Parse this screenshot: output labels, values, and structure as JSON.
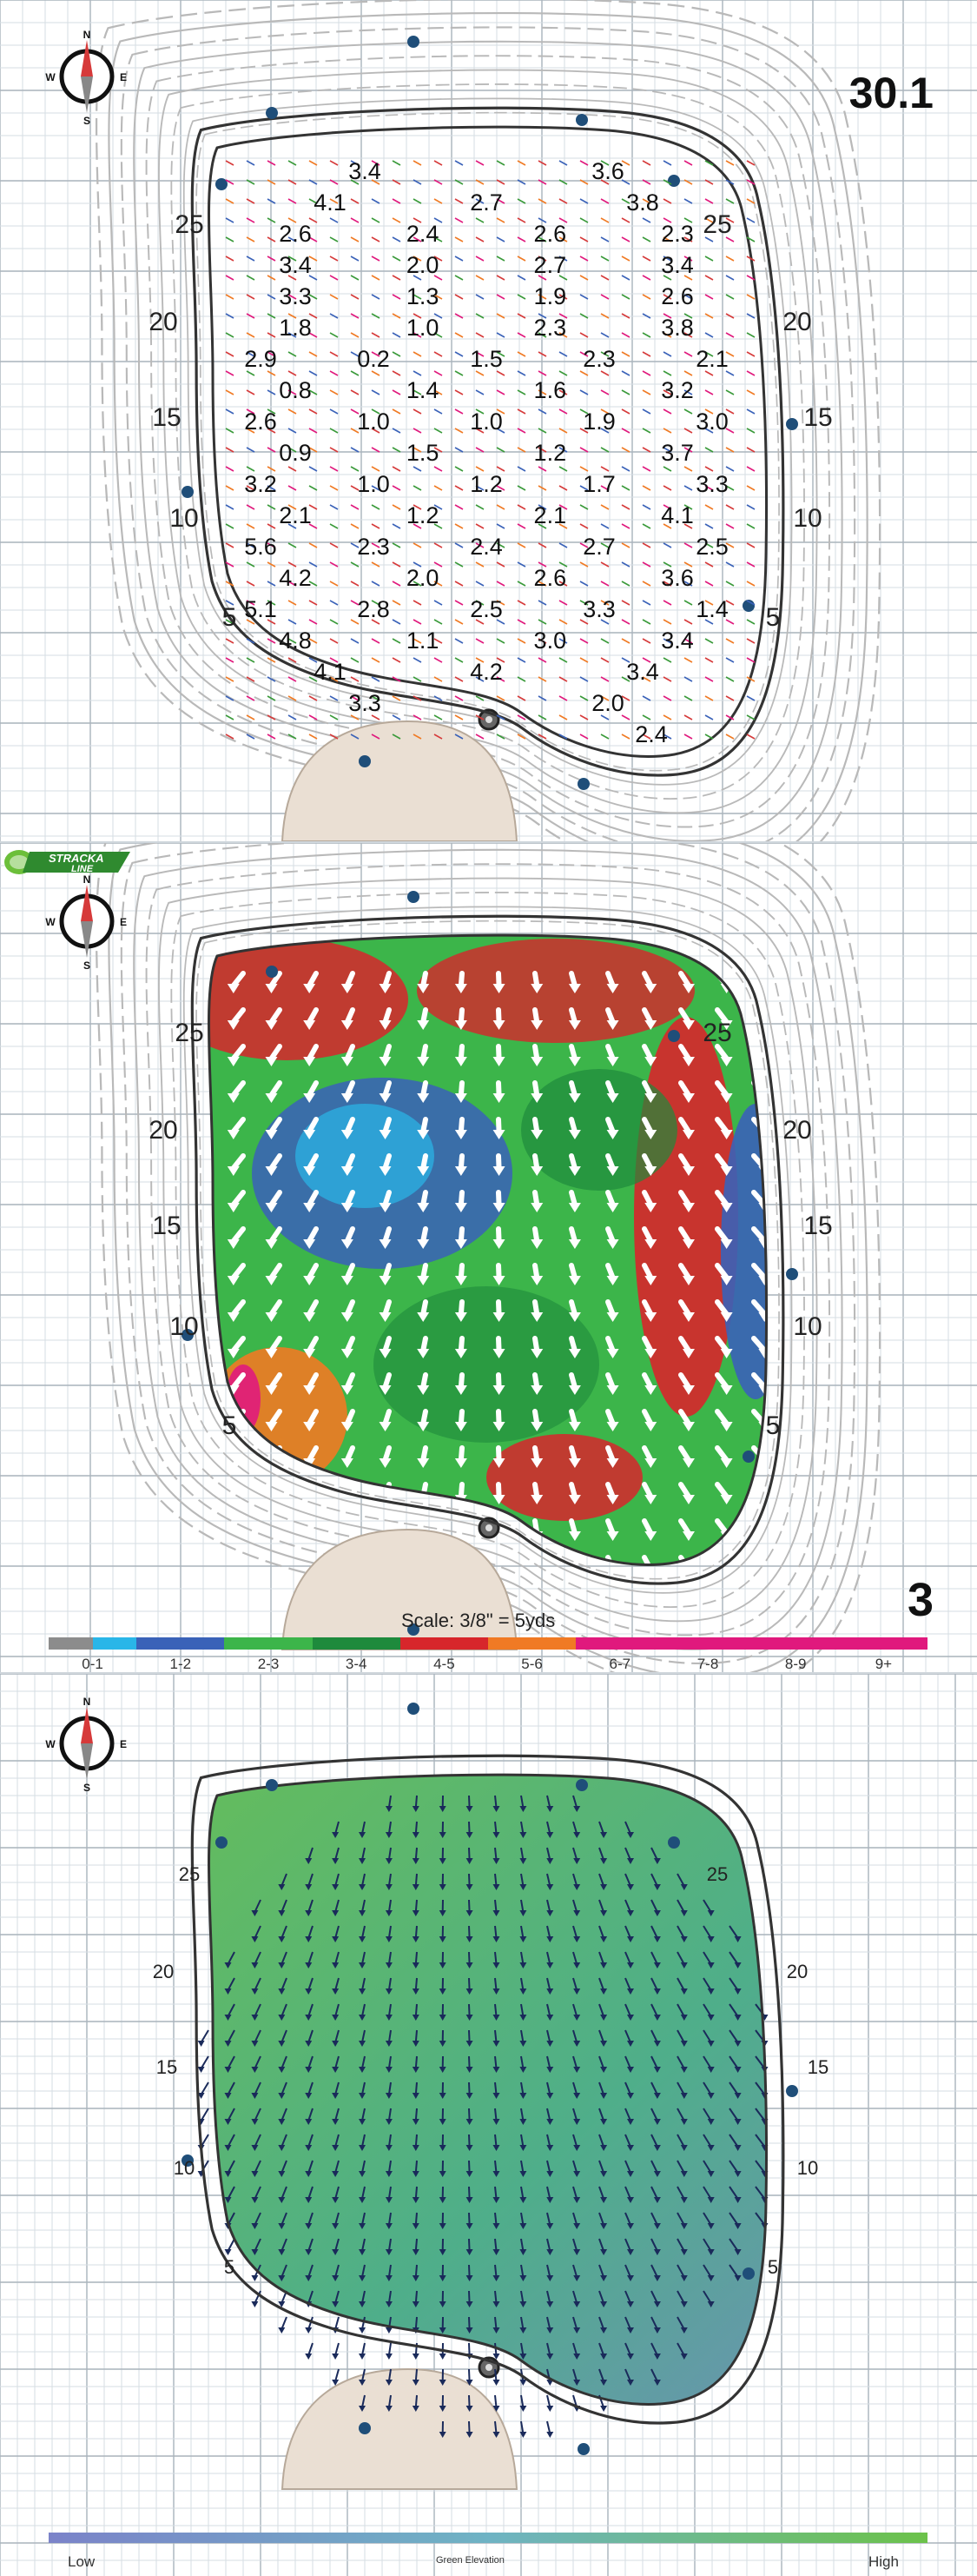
{
  "panel1": {
    "hole_number": "30.1",
    "compass": {
      "n": "N",
      "s": "S",
      "e": "E",
      "w": "W"
    },
    "yard_marks": [
      {
        "v": "25",
        "side": "left"
      },
      {
        "v": "20",
        "side": "left"
      },
      {
        "v": "15",
        "side": "left"
      },
      {
        "v": "10",
        "side": "left"
      },
      {
        "v": "5",
        "side": "left"
      },
      {
        "v": "25",
        "side": "right"
      },
      {
        "v": "20",
        "side": "right"
      },
      {
        "v": "15",
        "side": "right"
      },
      {
        "v": "10",
        "side": "right"
      },
      {
        "v": "5",
        "side": "right"
      }
    ],
    "slope_rows": [
      [
        "3.4",
        "3.6"
      ],
      [
        "4.1",
        "2.7",
        "3.8"
      ],
      [
        "2.6",
        "2.4",
        "2.6",
        "2.3"
      ],
      [
        "3.4",
        "2.0",
        "2.7",
        "3.4"
      ],
      [
        "3.3",
        "1.3",
        "1.9",
        "2.6"
      ],
      [
        "1.8",
        "1.0",
        "2.3",
        "3.8"
      ],
      [
        "2.9",
        "0.2",
        "1.5",
        "2.3",
        "2.1"
      ],
      [
        "0.8",
        "1.4",
        "1.6",
        "3.2"
      ],
      [
        "2.6",
        "1.0",
        "1.0",
        "1.9",
        "3.0"
      ],
      [
        "0.9",
        "1.5",
        "1.2",
        "3.7"
      ],
      [
        "3.2",
        "1.0",
        "1.2",
        "1.7",
        "3.3"
      ],
      [
        "2.1",
        "1.2",
        "2.1",
        "4.1"
      ],
      [
        "5.6",
        "2.3",
        "2.4",
        "2.7",
        "2.5"
      ],
      [
        "4.2",
        "2.0",
        "2.6",
        "3.6"
      ],
      [
        "5.1",
        "2.8",
        "2.5",
        "3.3",
        "1.4"
      ],
      [
        "4.8",
        "1.1",
        "3.0",
        "3.4"
      ],
      [
        "4.1",
        "4.2",
        "3.4"
      ],
      [
        "3.3",
        "2.0"
      ],
      [
        "2.4"
      ]
    ]
  },
  "panel2": {
    "hole_number": "3",
    "brand": "STRACKA LINE",
    "scale": "Scale: 3/8\" = 5yds",
    "compass": {
      "n": "N",
      "s": "S",
      "e": "E",
      "w": "W"
    },
    "yard_marks": [
      {
        "v": "25",
        "side": "left"
      },
      {
        "v": "20",
        "side": "left"
      },
      {
        "v": "15",
        "side": "left"
      },
      {
        "v": "10",
        "side": "left"
      },
      {
        "v": "5",
        "side": "left"
      },
      {
        "v": "25",
        "side": "right"
      },
      {
        "v": "20",
        "side": "right"
      },
      {
        "v": "15",
        "side": "right"
      },
      {
        "v": "10",
        "side": "right"
      },
      {
        "v": "5",
        "side": "right"
      }
    ],
    "legend": [
      {
        "label": "0-1",
        "colors": [
          "#8c8c8c",
          "#29b6e8"
        ]
      },
      {
        "label": "1-2",
        "colors": [
          "#3a62b8"
        ]
      },
      {
        "label": "2-3",
        "colors": [
          "#3cb54a"
        ]
      },
      {
        "label": "3-4",
        "colors": [
          "#1e8a3c"
        ]
      },
      {
        "label": "4-5",
        "colors": [
          "#d7262b"
        ]
      },
      {
        "label": "5-6",
        "colors": [
          "#f07a24"
        ]
      },
      {
        "label": "6-7",
        "colors": [
          "#e0197d"
        ]
      },
      {
        "label": "7-8",
        "colors": [
          "#e0197d"
        ]
      },
      {
        "label": "8-9",
        "colors": [
          "#e0197d"
        ]
      },
      {
        "label": "9+",
        "colors": [
          "#e0197d"
        ]
      }
    ]
  },
  "panel3": {
    "compass": {
      "n": "N",
      "s": "S",
      "e": "E",
      "w": "W"
    },
    "yard_marks": [
      {
        "v": "25",
        "side": "left"
      },
      {
        "v": "20",
        "side": "left"
      },
      {
        "v": "15",
        "side": "left"
      },
      {
        "v": "10",
        "side": "left"
      },
      {
        "v": "5",
        "side": "left"
      },
      {
        "v": "25",
        "side": "right"
      },
      {
        "v": "20",
        "side": "right"
      },
      {
        "v": "15",
        "side": "right"
      },
      {
        "v": "10",
        "side": "right"
      },
      {
        "v": "5",
        "side": "right"
      }
    ],
    "elevation_legend": {
      "low": "Low",
      "title": "Green Elevation",
      "high": "High",
      "low_color": "#7b83c9",
      "high_color": "#6cc24a"
    }
  }
}
